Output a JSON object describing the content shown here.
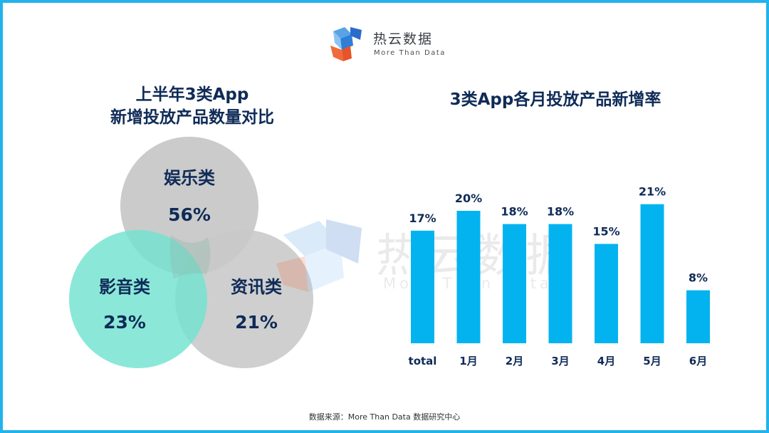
{
  "brand": {
    "name": "热云数据",
    "tagline": "More Than Data",
    "colors": {
      "frame": "#21b3ea",
      "bar": "#03b3f0",
      "title": "#0f2b57"
    }
  },
  "left_panel": {
    "title_line1": "上半年3类App",
    "title_line2": "新增投放产品数量对比",
    "venn": [
      {
        "name": "娱乐类",
        "percent": "56%",
        "color": "#c8c8c8"
      },
      {
        "name": "影音类",
        "percent": "23%",
        "color": "#72e3cf"
      },
      {
        "name": "资讯类",
        "percent": "21%",
        "color": "#c8c8c8"
      }
    ]
  },
  "watermark": {
    "name": "热云数据",
    "tagline": "More Than Data"
  },
  "chart_data": {
    "type": "bar",
    "title": "3类App各月投放产品新增率",
    "categories": [
      "total",
      "1月",
      "2月",
      "3月",
      "4月",
      "5月",
      "6月"
    ],
    "values": [
      17,
      20,
      18,
      18,
      15,
      21,
      8
    ],
    "value_labels": [
      "17%",
      "20%",
      "18%",
      "18%",
      "15%",
      "21%",
      "8%"
    ],
    "unit": "%",
    "ylim": [
      0,
      25
    ],
    "grid": false,
    "legend": "none"
  },
  "footer": {
    "source": "数据来源：More  Than  Data  数据研究中心"
  }
}
